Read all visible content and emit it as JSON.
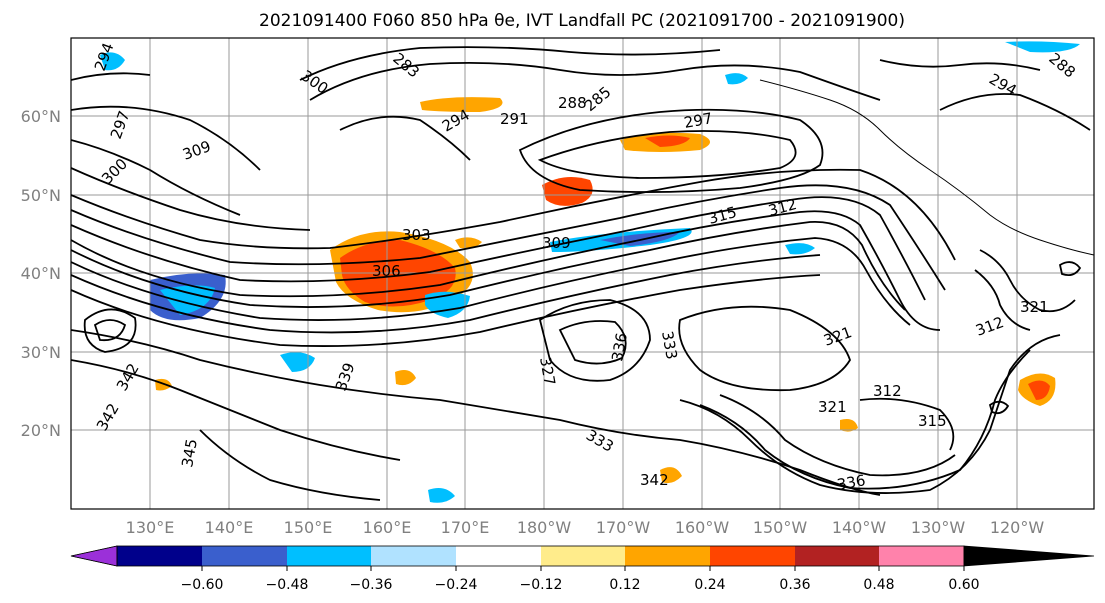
{
  "title": "2021091400 F060 850 hPa θe, IVT Landfall PC (2021091700 - 2021091900)",
  "latitude_labels": [
    "60°N",
    "50°N",
    "40°N",
    "30°N",
    "20°N"
  ],
  "longitude_labels": [
    "130°E",
    "140°E",
    "150°E",
    "160°E",
    "170°E",
    "180°W",
    "170°W",
    "160°W",
    "150°W",
    "140°W",
    "130°W",
    "120°W"
  ],
  "colorbar": {
    "tick_labels": [
      "−0.60",
      "−0.48",
      "−0.36",
      "−0.24",
      "−0.12",
      "0.12",
      "0.24",
      "0.36",
      "0.48",
      "0.60"
    ],
    "colors": [
      "#9b30d9",
      "#00008b",
      "#3a5fcd",
      "#00bfff",
      "#b0e2ff",
      "#ffffff",
      "#ffec8b",
      "#ffa500",
      "#ff4500",
      "#b22222",
      "#ff82ab"
    ]
  },
  "contour_labels": [
    "294",
    "300",
    "283",
    "285",
    "288",
    "291",
    "294",
    "297",
    "297",
    "300",
    "309",
    "303",
    "306",
    "309",
    "315",
    "312",
    "327",
    "336",
    "333",
    "339",
    "342",
    "345",
    "333",
    "342",
    "336",
    "321",
    "312",
    "315",
    "321",
    "342",
    "321",
    "312",
    "288",
    "294"
  ]
}
